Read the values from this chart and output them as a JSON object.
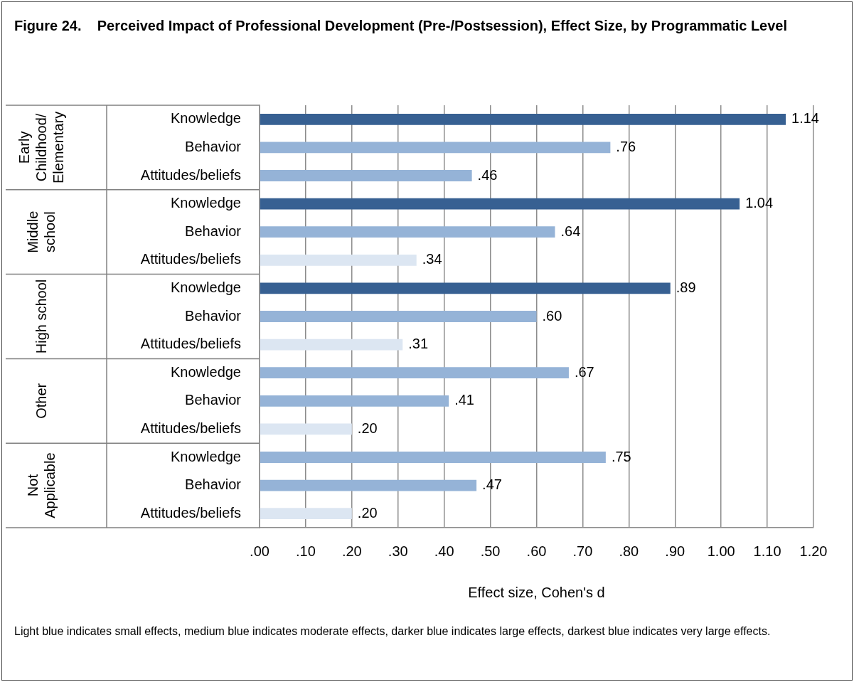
{
  "chart_data": {
    "type": "bar",
    "orientation": "horizontal",
    "title": "Figure 24.    Perceived Impact of Professional Development (Pre-/Postsession), Effect Size, by Programmatic Level",
    "xlabel": "Effect size, Cohen's d",
    "categories": [
      "Knowledge",
      "Behavior",
      "Attitudes/beliefs",
      "Knowledge",
      "Behavior",
      "Attitudes/beliefs",
      "Knowledge",
      "Behavior",
      "Attitudes/beliefs",
      "Knowledge",
      "Behavior",
      "Attitudes/beliefs",
      "Knowledge",
      "Behavior",
      "Attitudes/beliefs"
    ],
    "values": [
      1.14,
      0.76,
      0.46,
      1.04,
      0.64,
      0.34,
      0.89,
      0.6,
      0.31,
      0.67,
      0.41,
      0.2,
      0.75,
      0.47,
      0.2
    ],
    "value_labels": [
      "1.14",
      ".76",
      ".46",
      "1.04",
      ".64",
      ".34",
      ".89",
      ".60",
      ".31",
      ".67",
      ".41",
      ".20",
      ".75",
      ".47",
      ".20"
    ],
    "colors": [
      "#376092",
      "#95b3d7",
      "#95b3d7",
      "#376092",
      "#95b3d7",
      "#dce6f2",
      "#376092",
      "#95b3d7",
      "#dce6f2",
      "#95b3d7",
      "#95b3d7",
      "#dce6f2",
      "#95b3d7",
      "#95b3d7",
      "#dce6f2"
    ],
    "xlim": [
      0,
      1.2
    ],
    "xticks": [
      {
        "value": 0,
        "label": ".00"
      },
      {
        "value": 0.1,
        "label": ".10"
      },
      {
        "value": 0.2,
        "label": ".20"
      },
      {
        "value": 0.3,
        "label": ".30"
      },
      {
        "value": 0.4,
        "label": ".40"
      },
      {
        "value": 0.5,
        "label": ".50"
      },
      {
        "value": 0.6,
        "label": ".60"
      },
      {
        "value": 0.7,
        "label": ".70"
      },
      {
        "value": 0.8,
        "label": ".80"
      },
      {
        "value": 0.9,
        "label": ".90"
      },
      {
        "value": 1,
        "label": "1.00"
      },
      {
        "value": 1.1,
        "label": "1.10"
      },
      {
        "value": 1.2,
        "label": "1.20"
      }
    ],
    "grid": "x",
    "legend": false,
    "annotations": [
      "Early Childhood/ Elementary",
      "Middle school",
      "High school",
      "Other",
      "Not Applicable",
      "Light blue indicates small effects, medium blue indicates moderate effects, darker blue indicates large effects, darkest blue indicates very large effects."
    ]
  }
}
